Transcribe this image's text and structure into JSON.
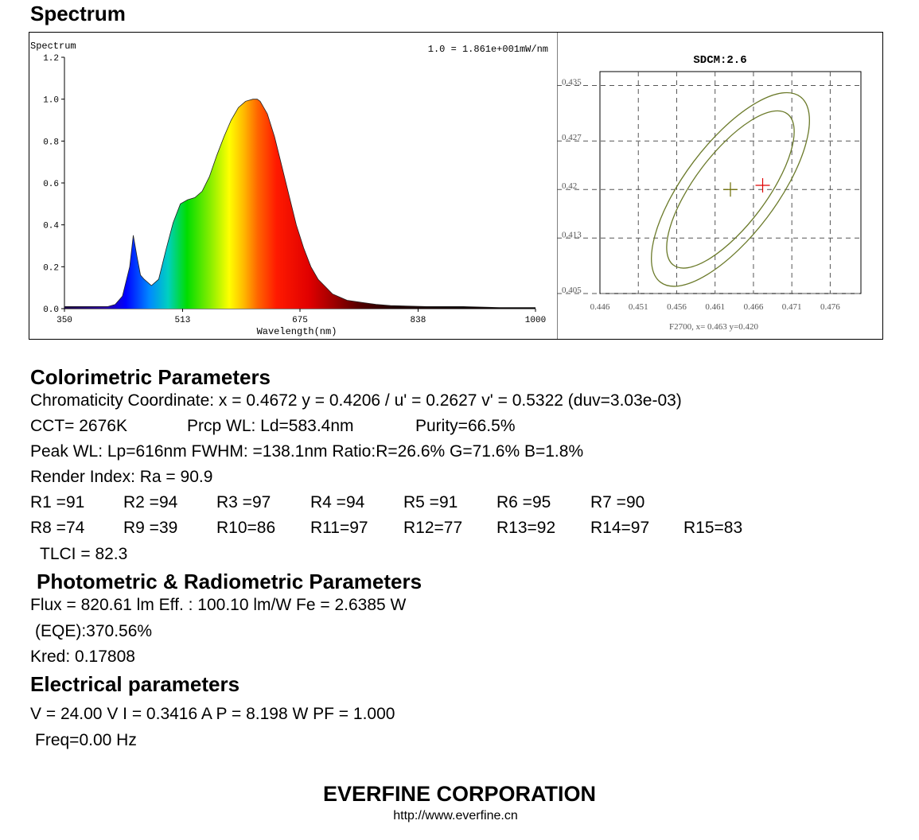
{
  "header": {
    "title": "Spectrum"
  },
  "spectrum_chart": {
    "inner_title": "Spectrum",
    "scale_note": "1.0 = 1.861e+001mW/nm",
    "xlabel": "Wavelength(nm)",
    "x_ticks": [
      "350",
      "513",
      "675",
      "838",
      "1000"
    ],
    "y_ticks": [
      "0.0",
      "0.2",
      "0.4",
      "0.6",
      "0.8",
      "1.0",
      "1.2"
    ]
  },
  "cie_chart": {
    "title": "SDCM:2.6",
    "x_ticks": [
      "0.446",
      "0.451",
      "0.456",
      "0.461",
      "0.466",
      "0.471",
      "0.476"
    ],
    "y_ticks": [
      "0.435",
      "0.427",
      "0.42",
      "0.413",
      "0.405"
    ],
    "footer": "F2700,  x= 0.463 y=0.420"
  },
  "chart_data": [
    {
      "type": "line",
      "title": "Spectrum",
      "xlabel": "Wavelength(nm)",
      "ylabel": "",
      "xlim": [
        350,
        1000
      ],
      "ylim": [
        0,
        1.2
      ],
      "grid": false,
      "series": [
        {
          "x": [
            350,
            380,
            400,
            410,
            420,
            430,
            440,
            445,
            450,
            455,
            460,
            470,
            480,
            490,
            500,
            510,
            520,
            530,
            540,
            550,
            560,
            570,
            580,
            590,
            600,
            610,
            616,
            620,
            630,
            640,
            650,
            660,
            670,
            680,
            690,
            700,
            720,
            740,
            760,
            780,
            800,
            850,
            900,
            950,
            1000
          ],
          "values": [
            0.01,
            0.01,
            0.01,
            0.01,
            0.02,
            0.06,
            0.2,
            0.35,
            0.25,
            0.16,
            0.14,
            0.11,
            0.14,
            0.28,
            0.41,
            0.5,
            0.52,
            0.53,
            0.56,
            0.63,
            0.73,
            0.82,
            0.9,
            0.96,
            0.99,
            1.0,
            1.0,
            0.99,
            0.93,
            0.82,
            0.68,
            0.54,
            0.4,
            0.29,
            0.2,
            0.14,
            0.07,
            0.04,
            0.03,
            0.02,
            0.015,
            0.01,
            0.01,
            0.005,
            0.005
          ]
        }
      ]
    },
    {
      "type": "scatter",
      "title": "SDCM:2.6",
      "xlabel": "",
      "ylabel": "",
      "xlim": [
        0.446,
        0.48
      ],
      "ylim": [
        0.405,
        0.437
      ],
      "grid": true,
      "points": [
        {
          "x": 0.463,
          "y": 0.42,
          "color": "#6b6b00"
        },
        {
          "x": 0.4672,
          "y": 0.4206,
          "color": "#e00000"
        }
      ],
      "ellipse_color": "#6b7a2a"
    }
  ],
  "colorimetric": {
    "heading": "Colorimetric Parameters",
    "chromaticity": "Chromaticity Coordinate: x = 0.4672 y = 0.4206 / u' = 0.2627 v' = 0.5322 (duv=3.03e-03)",
    "cct": "CCT=  2676K",
    "prcp": "Prcp WL:    Ld=583.4nm",
    "purity": "Purity=66.5%",
    "peak": "Peak WL:  Lp=616nm  FWHM:   =138.1nm  Ratio:R=26.6% G=71.6% B=1.8%",
    "render": "Render Index: Ra = 90.9",
    "r_row1": [
      "R1 =91",
      "R2 =94",
      "R3 =97",
      "R4 =94",
      "R5 =91",
      "R6 =95",
      "R7 =90"
    ],
    "r_row2": [
      "R8 =74",
      "R9 =39",
      "R10=86",
      "R11=97",
      "R12=77",
      "R13=92",
      "R14=97",
      "R15=83"
    ],
    "tlci": "TLCI = 82.3"
  },
  "photometric": {
    "heading": "Photometric & Radiometric Parameters",
    "flux": "Flux  = 820.61 lm   Eff. : 100.10 lm/W  Fe  = 2.6385 W",
    "eqe": "(EQE):370.56%",
    "kred": "Kred: 0.17808"
  },
  "electrical": {
    "heading": "Electrical parameters",
    "values": "V = 24.00 V     I = 0.3416 A    P = 8.198 W PF = 1.000",
    "freq": "Freq=0.00 Hz"
  },
  "footer": {
    "company": "EVERFINE CORPORATION",
    "url": "http://www.everfine.cn"
  }
}
